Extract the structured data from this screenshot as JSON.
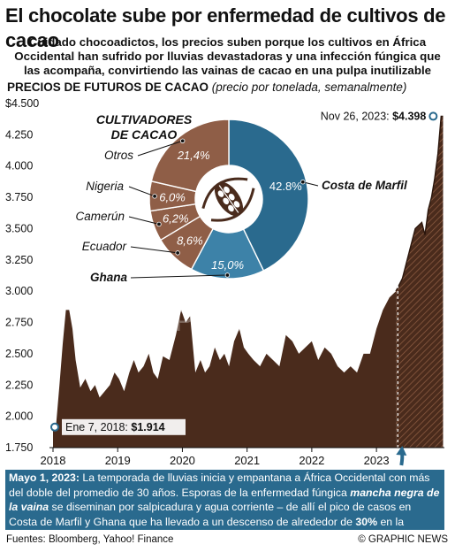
{
  "headline": "El chocolate sube por enfermedad de cultivos de cacao",
  "standfirst": "Cuidado chocoadictos, los precios suben porque los cultivos en África Occidental han sufrido por lluvias devastadoras y una infección fúngica que las acompaña, convirtiendo las vainas de cacao en una pulpa inutilizable",
  "section_title": "PRECIOS DE FUTUROS DE CACAO",
  "section_subtitle": "(precio por tonelada, semanalmente)",
  "watermark": "GRAPHIC NEWS",
  "colors": {
    "area": "#4a2b1c",
    "peak": "#2b160c",
    "pie_brown": "#8f5e47",
    "pie_blue": "#2a6a8e",
    "pie_light_blue": "#3d82a8",
    "note_bg": "#2a6a8e"
  },
  "note": {
    "date": "Mayo 1, 2023:",
    "text1": "La temporada de lluvias inicia y empantana a África Occidental con más del doble del promedio de 30 años. Esporas de la enfermedad fúngica",
    "disease": "mancha negra de la vaina",
    "text2": "se diseminan por salpicadura y agua corriente – de allí el pico de casos en Costa de Marfil y Ghana que ha llevado a un descenso de alrededor de",
    "pct": "30%",
    "text3": "en la cosecha de cacao"
  },
  "sources": "Fuentes: Bloomberg, Yahoo! Finance",
  "credit": "© GRAPHIC NEWS",
  "chart_data": [
    {
      "type": "area",
      "title": "PRECIOS DE FUTUROS DE CACAO",
      "subtitle": "(precio por tonelada, semanalmente)",
      "x_ticks": [
        "2018",
        "2019",
        "2020",
        "2021",
        "2022",
        "2023"
      ],
      "y_ticks": [
        "1.750",
        "2.000",
        "2.250",
        "2.500",
        "2.750",
        "3.000",
        "3.250",
        "3.500",
        "3.750",
        "4.000",
        "4.250",
        "$4.500"
      ],
      "ylim": [
        1750,
        4500
      ],
      "xlim": [
        2018.0,
        2024.05
      ],
      "grid": false,
      "highlight_start": 2023.33,
      "series": [
        {
          "x": [
            2018.0,
            2018.05,
            2018.1,
            2018.15,
            2018.2,
            2018.25,
            2018.3,
            2018.35,
            2018.42,
            2018.5,
            2018.58,
            2018.65,
            2018.72,
            2018.8,
            2018.88,
            2018.95,
            2019.02,
            2019.1,
            2019.18,
            2019.25,
            2019.32,
            2019.4,
            2019.48,
            2019.55,
            2019.62,
            2019.7,
            2019.8,
            2019.9,
            2019.98,
            2020.05,
            2020.12,
            2020.2,
            2020.28,
            2020.35,
            2020.42,
            2020.5,
            2020.58,
            2020.65,
            2020.72,
            2020.8,
            2020.88,
            2020.95,
            2021.02,
            2021.1,
            2021.2,
            2021.3,
            2021.4,
            2021.5,
            2021.6,
            2021.7,
            2021.8,
            2021.9,
            2022.0,
            2022.1,
            2022.2,
            2022.3,
            2022.4,
            2022.5,
            2022.6,
            2022.7,
            2022.8,
            2022.9,
            2023.0,
            2023.1,
            2023.2,
            2023.3,
            2023.4,
            2023.5,
            2023.6,
            2023.7,
            2023.75,
            2023.8,
            2023.85,
            2023.9,
            2023.95,
            2024.0,
            2024.03
          ],
          "values": [
            1914,
            1950,
            2250,
            2580,
            2850,
            2850,
            2700,
            2450,
            2230,
            2300,
            2200,
            2250,
            2150,
            2200,
            2250,
            2350,
            2300,
            2200,
            2350,
            2450,
            2350,
            2400,
            2500,
            2350,
            2300,
            2480,
            2450,
            2650,
            2850,
            2750,
            2800,
            2350,
            2450,
            2350,
            2400,
            2550,
            2450,
            2500,
            2400,
            2600,
            2700,
            2550,
            2500,
            2450,
            2400,
            2500,
            2450,
            2400,
            2650,
            2600,
            2500,
            2550,
            2600,
            2450,
            2550,
            2500,
            2400,
            2350,
            2400,
            2350,
            2500,
            2500,
            2700,
            2850,
            2950,
            3000,
            3100,
            3300,
            3500,
            3550,
            3450,
            3650,
            3750,
            3900,
            4100,
            4398,
            4398
          ]
        }
      ],
      "annotations": [
        {
          "label": "Ene 7, 2018:",
          "value": "$1.914",
          "x": 2018.0,
          "y": 1914
        },
        {
          "label": "Nov 26, 2023:",
          "value": "$4.398",
          "x": 2024.0,
          "y": 4398
        }
      ]
    },
    {
      "type": "pie",
      "title": "CULTIVADORES DE CACAO",
      "categories": [
        "Costa de Marfil",
        "Ghana",
        "Ecuador",
        "Camerún",
        "Nigeria",
        "Otros"
      ],
      "values": [
        42.8,
        15.0,
        8.6,
        6.2,
        6.0,
        21.4
      ],
      "value_labels": [
        "42.8%",
        "15,0%",
        "8,6%",
        "6,2%",
        "6,0%",
        "21,4%"
      ]
    }
  ]
}
